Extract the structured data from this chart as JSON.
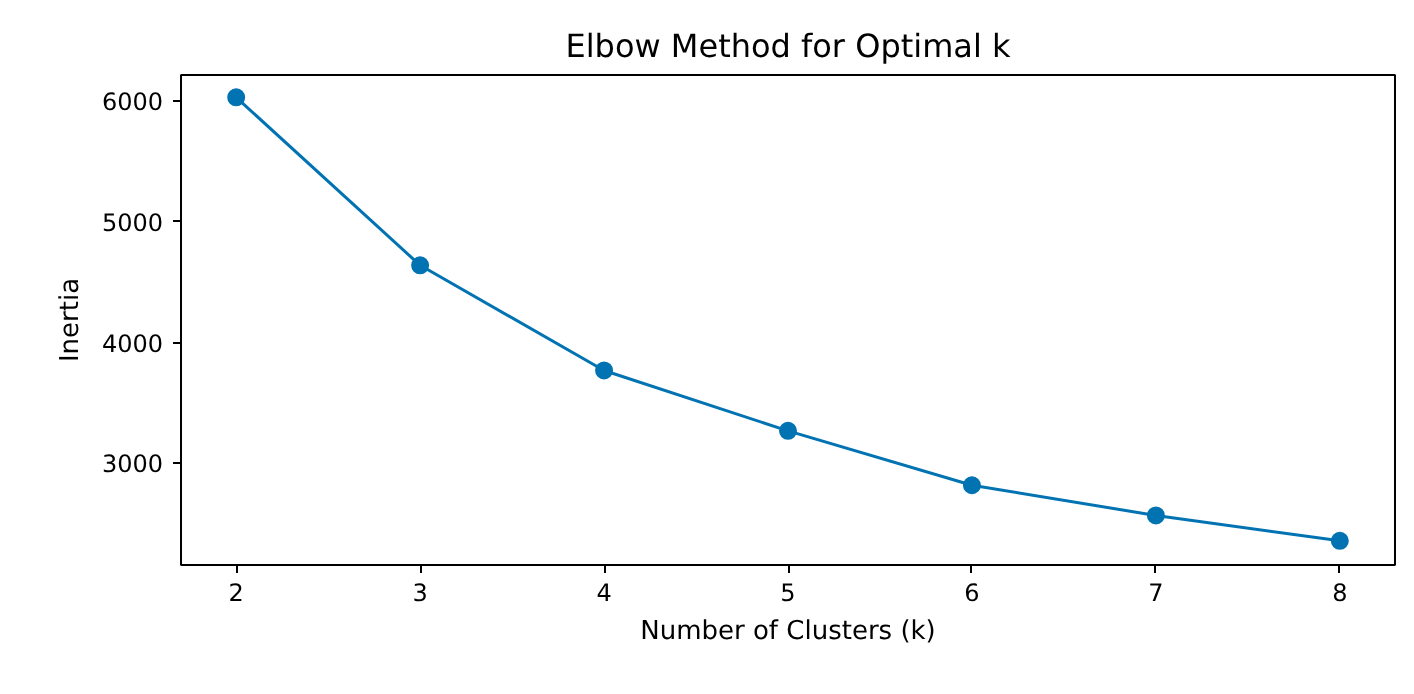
{
  "chart_data": {
    "type": "line",
    "title": "Elbow Method for Optimal k",
    "xlabel": "Number of Clusters (k)",
    "ylabel": "Inertia",
    "x": [
      2,
      3,
      4,
      5,
      6,
      7,
      8
    ],
    "series": [
      {
        "color": "#0173b2",
        "values": [
          6030,
          4640,
          3770,
          3270,
          2820,
          2570,
          2360
        ]
      }
    ],
    "xlim": [
      1.7,
      8.3
    ],
    "xticks": [
      2,
      3,
      4,
      5,
      6,
      7,
      8
    ],
    "ylim": [
      2160,
      6215
    ],
    "yticks": [
      3000,
      4000,
      5000,
      6000
    ],
    "marker": "circle",
    "line_style": "solid",
    "grid": false
  }
}
